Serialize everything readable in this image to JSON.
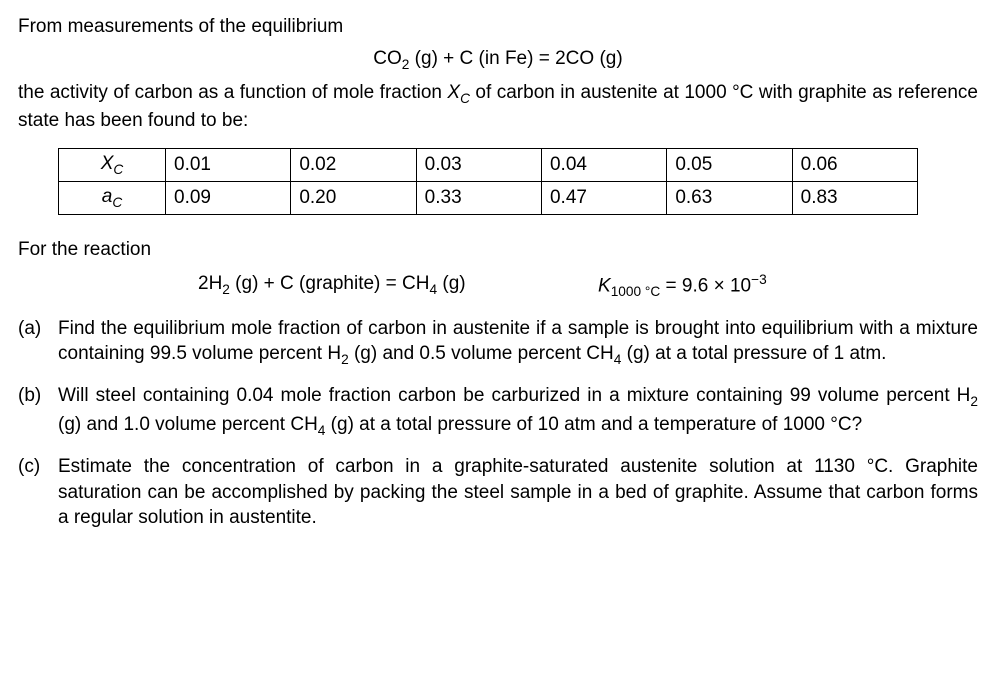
{
  "intro_line1": "From measurements of the equilibrium",
  "equilibrium_eq_plain": "CO2 (g) + C (in Fe) = 2CO (g)",
  "intro_line2_a": "the activity of carbon as a function of mole fraction ",
  "intro_line2_b": " of carbon in austenite at 1000 °C with graphite as reference state has been found to be:",
  "table": {
    "row1_head": "XC",
    "row2_head": "aC",
    "xc": [
      "0.01",
      "0.02",
      "0.03",
      "0.04",
      "0.05",
      "0.06"
    ],
    "ac": [
      "0.09",
      "0.20",
      "0.33",
      "0.47",
      "0.63",
      "0.83"
    ],
    "border_color": "#000000",
    "cell_fontsize": 19
  },
  "for_reaction": "For the reaction",
  "reaction2_plain": "2H2 (g) + C (graphite) = CH4 (g)",
  "k_label_plain": "K1000 °C = 9.6 × 10^-3",
  "k_value": "9.6 × 10",
  "k_exp": "−3",
  "parts": {
    "a": {
      "label": "(a)",
      "text": "Find the equilibrium mole fraction of carbon in austenite if a sample is brought into equilibrium with a mixture containing 99.5 volume percent H2 (g) and 0.5 volume percent CH4 (g) at a total pressure of 1 atm."
    },
    "b": {
      "label": "(b)",
      "text": "Will steel containing 0.04 mole fraction carbon be carburized in a mixture containing 99 volume percent H2 (g) and 1.0 volume percent CH4 (g) at a total pressure of 10 atm and a temperature of 1000 °C?"
    },
    "c": {
      "label": "(c)",
      "text": "Estimate the concentration of carbon in a graphite-saturated austenite solution at 1130 °C. Graphite saturation can be accomplished by packing the steel sample in a bed of graphite. Assume that carbon forms a regular solution in austentite."
    }
  },
  "colors": {
    "text": "#000000",
    "background": "#ffffff"
  }
}
